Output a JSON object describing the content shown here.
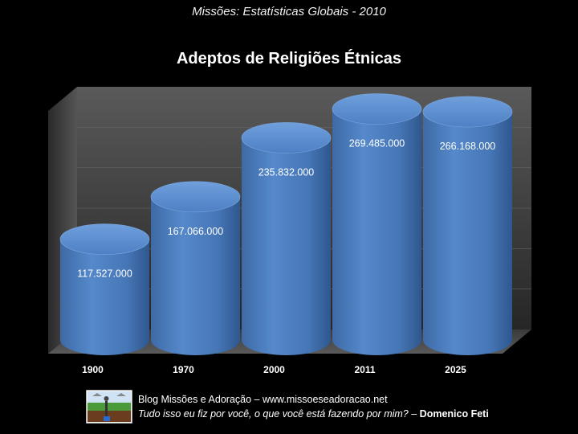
{
  "header": {
    "subtitle": "Missões: Estatísticas Globais - 2010"
  },
  "chart_data": {
    "type": "bar",
    "title": "Adeptos de Religiões Étnicas",
    "categories": [
      "1900",
      "1970",
      "2000",
      "2011",
      "2025"
    ],
    "values": [
      117527000,
      167066000,
      235832000,
      269485000,
      266168000
    ],
    "data_labels": [
      "117.527.000",
      "167.066.000",
      "235.832.000",
      "269.485.000",
      "266.168.000"
    ],
    "xlabel": "",
    "ylabel": "",
    "ylim": [
      0,
      300000000
    ],
    "grid": true,
    "legend": "none",
    "colors": {
      "bar": "#4f81bd",
      "bar_top": "#5b8fd0",
      "background": "#000000"
    }
  },
  "footer": {
    "line1": "Blog Missões e Adoração – www.missoeseadoracao.net",
    "quote": "Tudo isso eu fiz por você, o que você está fazendo por mim?",
    "separator": " – ",
    "author": "Domenico Feti",
    "logo_icon": "blog-logo-icon"
  }
}
